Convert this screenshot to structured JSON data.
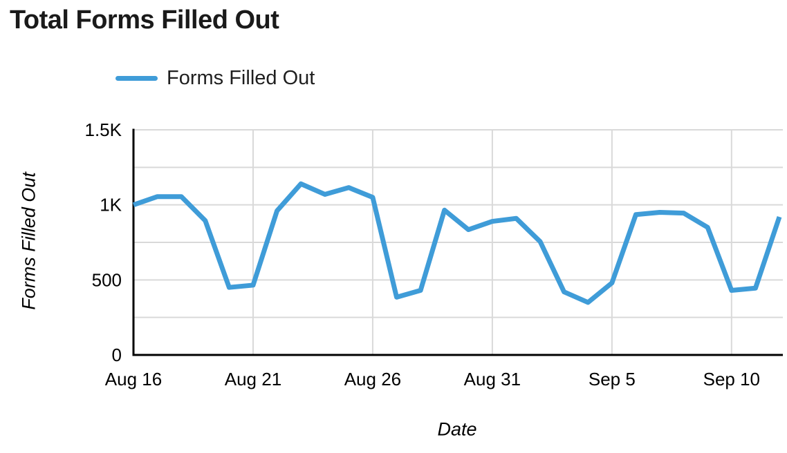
{
  "header": {
    "title": "Total Forms Filled Out"
  },
  "legend": {
    "label": "Forms Filled Out"
  },
  "chart_data": {
    "type": "line",
    "title": "Total Forms Filled Out",
    "xlabel": "Date",
    "ylabel": "Forms Filled Out",
    "x": [
      "Aug 16",
      "Aug 17",
      "Aug 18",
      "Aug 19",
      "Aug 20",
      "Aug 21",
      "Aug 22",
      "Aug 23",
      "Aug 24",
      "Aug 25",
      "Aug 26",
      "Aug 27",
      "Aug 28",
      "Aug 29",
      "Aug 30",
      "Aug 31",
      "Sep 1",
      "Sep 2",
      "Sep 3",
      "Sep 4",
      "Sep 5",
      "Sep 6",
      "Sep 7",
      "Sep 8",
      "Sep 9",
      "Sep 10",
      "Sep 11",
      "Sep 12"
    ],
    "series": [
      {
        "name": "Forms Filled Out",
        "color": "#3f9cd8",
        "values": [
          1000,
          1055,
          1055,
          895,
          450,
          465,
          960,
          1140,
          1070,
          1115,
          1050,
          385,
          430,
          965,
          835,
          890,
          910,
          755,
          420,
          350,
          480,
          935,
          950,
          945,
          850,
          430,
          445,
          920
        ]
      }
    ],
    "ylim": [
      0,
      1500
    ],
    "y_ticks": [
      {
        "value": 0,
        "label": "0"
      },
      {
        "value": 500,
        "label": "500"
      },
      {
        "value": 1000,
        "label": "1K"
      },
      {
        "value": 1500,
        "label": "1.5K"
      }
    ],
    "y_gridline_values": [
      250,
      500,
      750,
      1000,
      1250,
      1500
    ],
    "x_tick_indices": [
      0,
      5,
      10,
      15,
      20,
      25
    ],
    "grid": true,
    "legend_position": "top",
    "colors": {
      "grid": "#d9d9d9",
      "axis": "#000000",
      "text": "#000000"
    }
  }
}
